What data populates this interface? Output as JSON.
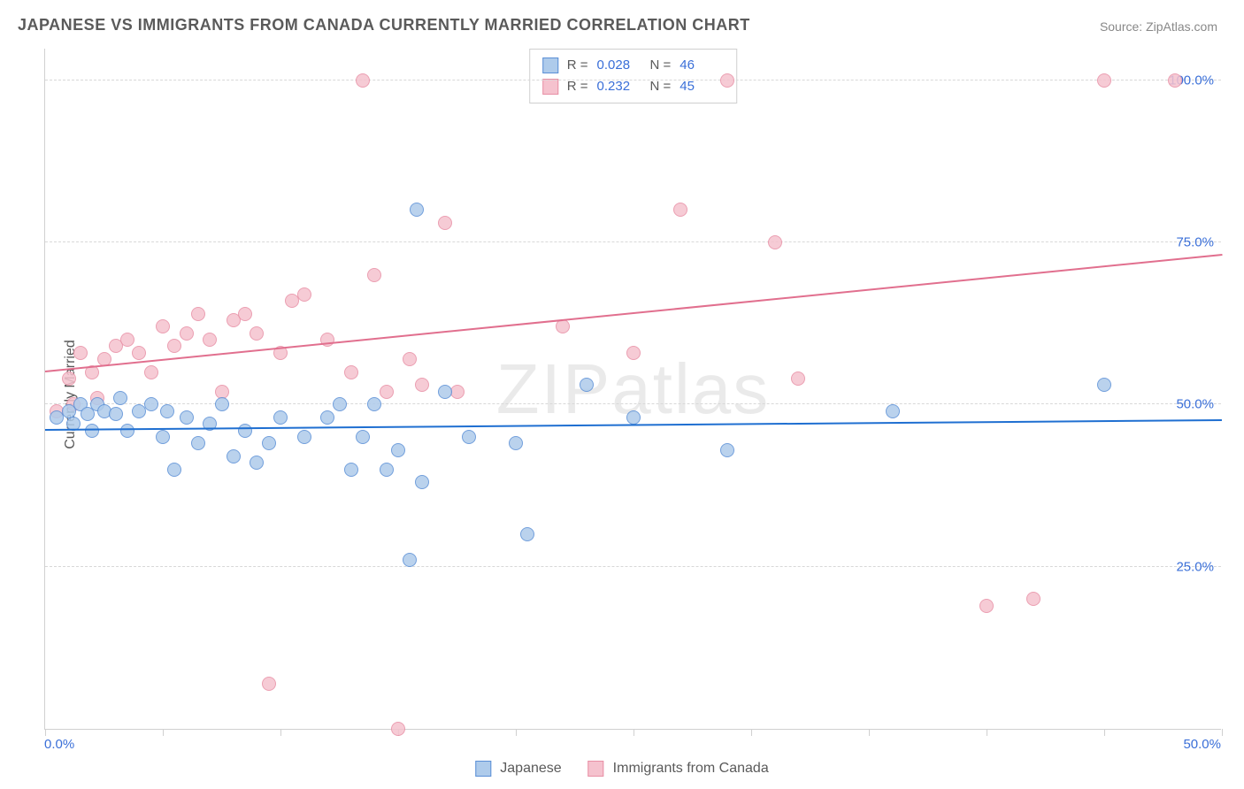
{
  "title": "JAPANESE VS IMMIGRANTS FROM CANADA CURRENTLY MARRIED CORRELATION CHART",
  "source": "Source: ZipAtlas.com",
  "ylabel": "Currently Married",
  "watermark": "ZIPatlas",
  "chart": {
    "type": "scatter",
    "xlim": [
      0,
      50
    ],
    "ylim": [
      0,
      105
    ],
    "background_color": "#ffffff",
    "grid_color": "#d8d8d8",
    "axis_color": "#d0d0d0",
    "tick_label_color": "#3a6fd8",
    "tick_label_fontsize": 15,
    "y_gridlines": [
      25,
      50,
      75,
      100
    ],
    "y_tick_labels": [
      "25.0%",
      "50.0%",
      "75.0%",
      "100.0%"
    ],
    "x_ticks": [
      0,
      5,
      10,
      15,
      20,
      25,
      30,
      35,
      40,
      45,
      50
    ],
    "x_tick_labels": {
      "0": "0.0%",
      "50": "50.0%"
    },
    "marker_radius": 8,
    "series": [
      {
        "name": "Japanese",
        "fill": "#aecbeb",
        "stroke": "#5a8fd6",
        "line_color": "#1f6fd1",
        "R": "0.028",
        "N": "46",
        "trend": {
          "x1": 0,
          "y1": 46,
          "x2": 50,
          "y2": 47.5
        },
        "points": [
          [
            0.5,
            48
          ],
          [
            1,
            49
          ],
          [
            1.2,
            47
          ],
          [
            1.5,
            50
          ],
          [
            1.8,
            48.5
          ],
          [
            2,
            46
          ],
          [
            2.2,
            50
          ],
          [
            2.5,
            49
          ],
          [
            3,
            48.5
          ],
          [
            3.2,
            51
          ],
          [
            3.5,
            46
          ],
          [
            4,
            49
          ],
          [
            4.5,
            50
          ],
          [
            5,
            45
          ],
          [
            5.2,
            49
          ],
          [
            5.5,
            40
          ],
          [
            6,
            48
          ],
          [
            6.5,
            44
          ],
          [
            7,
            47
          ],
          [
            7.5,
            50
          ],
          [
            8,
            42
          ],
          [
            8.5,
            46
          ],
          [
            9,
            41
          ],
          [
            9.5,
            44
          ],
          [
            10,
            48
          ],
          [
            11,
            45
          ],
          [
            12,
            48
          ],
          [
            12.5,
            50
          ],
          [
            13,
            40
          ],
          [
            13.5,
            45
          ],
          [
            14,
            50
          ],
          [
            14.5,
            40
          ],
          [
            15,
            43
          ],
          [
            15.5,
            26
          ],
          [
            15.8,
            80
          ],
          [
            16,
            38
          ],
          [
            17,
            52
          ],
          [
            18,
            45
          ],
          [
            20,
            44
          ],
          [
            20.5,
            30
          ],
          [
            23,
            53
          ],
          [
            25,
            48
          ],
          [
            29,
            43
          ],
          [
            36,
            49
          ],
          [
            45,
            53
          ]
        ]
      },
      {
        "name": "Immigrants from Canada",
        "fill": "#f5c2ce",
        "stroke": "#e88fa5",
        "line_color": "#e16f8e",
        "R": "0.232",
        "N": "45",
        "trend": {
          "x1": 0,
          "y1": 55,
          "x2": 50,
          "y2": 73
        },
        "points": [
          [
            0.5,
            49
          ],
          [
            1,
            54
          ],
          [
            1.2,
            50
          ],
          [
            1.5,
            58
          ],
          [
            2,
            55
          ],
          [
            2.2,
            51
          ],
          [
            2.5,
            57
          ],
          [
            3,
            59
          ],
          [
            3.5,
            60
          ],
          [
            4,
            58
          ],
          [
            4.5,
            55
          ],
          [
            5,
            62
          ],
          [
            5.5,
            59
          ],
          [
            6,
            61
          ],
          [
            6.5,
            64
          ],
          [
            7,
            60
          ],
          [
            7.5,
            52
          ],
          [
            8,
            63
          ],
          [
            8.5,
            64
          ],
          [
            9,
            61
          ],
          [
            9.5,
            7
          ],
          [
            10,
            58
          ],
          [
            10.5,
            66
          ],
          [
            11,
            67
          ],
          [
            12,
            60
          ],
          [
            13,
            55
          ],
          [
            13.5,
            100
          ],
          [
            14,
            70
          ],
          [
            14.5,
            52
          ],
          [
            15,
            0
          ],
          [
            15.5,
            57
          ],
          [
            16,
            53
          ],
          [
            17,
            78
          ],
          [
            17.5,
            52
          ],
          [
            22,
            62
          ],
          [
            25,
            58
          ],
          [
            27,
            80
          ],
          [
            29,
            100
          ],
          [
            31,
            75
          ],
          [
            32,
            54
          ],
          [
            40,
            19
          ],
          [
            42,
            20
          ],
          [
            45,
            100
          ],
          [
            48,
            100
          ]
        ]
      }
    ]
  },
  "legend": {
    "series1_label": "Japanese",
    "series2_label": "Immigrants from Canada"
  },
  "stats_labels": {
    "R": "R =",
    "N": "N ="
  }
}
